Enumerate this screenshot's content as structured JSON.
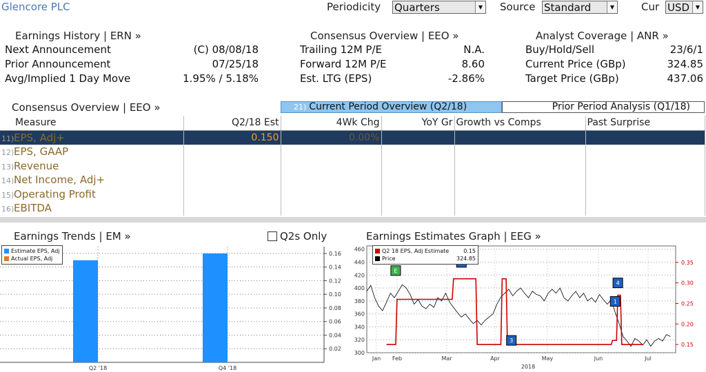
{
  "company": "Glencore PLC",
  "controls": {
    "periodicity_label": "Periodicity",
    "periodicity_value": "Quarters",
    "source_label": "Source",
    "source_value": "Standard",
    "cur_label": "Cur",
    "cur_value": "USD"
  },
  "earnings_history": {
    "title": "Earnings History | ERN »",
    "rows": [
      {
        "label": "Next Announcement",
        "value": "(C) 08/08/18"
      },
      {
        "label": "Prior Announcement",
        "value": "07/25/18"
      },
      {
        "label": "Avg/Implied 1 Day Move",
        "value": "1.95% / 5.18%"
      }
    ]
  },
  "consensus_overview": {
    "title": "Consensus Overview | EEO »",
    "rows": [
      {
        "label": "Trailing 12M P/E",
        "value": "N.A."
      },
      {
        "label": "Forward 12M P/E",
        "value": "8.60"
      },
      {
        "label": "Est. LTG (EPS)",
        "value": "-2.86%"
      }
    ]
  },
  "analyst_coverage": {
    "title": "Analyst Coverage | ANR »",
    "rows": [
      {
        "label": "Buy/Hold/Sell",
        "value": "23/6/1"
      },
      {
        "label": "Current Price (GBp)",
        "value": "324.85"
      },
      {
        "label": "Target Price (GBp)",
        "value": "437.06"
      }
    ]
  },
  "table_section": {
    "title": "Consensus Overview | EEO »",
    "tab_active_num": "21)",
    "tab_active": "Current Period Overview (Q2/18)",
    "tab_inactive": "Prior Period Analysis (Q1/18)",
    "headers": [
      "Measure",
      "Q2/18 Est",
      "4Wk Chg",
      "YoY Gr",
      "Growth vs Comps",
      "Past Surprise"
    ],
    "rows": [
      {
        "num": "11)",
        "measure": "EPS, Adj+",
        "est": "0.150",
        "chg": "0.00%"
      },
      {
        "num": "12)",
        "measure": "EPS, GAAP",
        "est": "",
        "chg": ""
      },
      {
        "num": "13)",
        "measure": "Revenue",
        "est": "",
        "chg": ""
      },
      {
        "num": "14)",
        "measure": "Net Income, Adj+",
        "est": "",
        "chg": ""
      },
      {
        "num": "15)",
        "measure": "Operating Profit",
        "est": "",
        "chg": ""
      },
      {
        "num": "16)",
        "measure": "EBITDA",
        "est": "",
        "chg": ""
      }
    ]
  },
  "earnings_trends": {
    "title": "Earnings Trends | EM »",
    "checkbox_label": "Q2s Only",
    "legend": [
      "Estimate EPS, Adj",
      "Actual EPS, Adj"
    ]
  },
  "estimates_graph": {
    "title": "Earnings Estimates Graph | EEG »",
    "legend": [
      {
        "label": "Q2 18 EPS, Adj Estimate",
        "value": "0.15"
      },
      {
        "label": "Price",
        "value": "324.85"
      }
    ],
    "year_label": "2018",
    "markers": [
      "E",
      "2",
      "3",
      "1",
      "4"
    ]
  },
  "colors": {
    "accent_blue": "#1e90ff",
    "tab_active": "#8ec6f0",
    "selected_row": "#1e3a5f",
    "estimate_red": "#cc0000",
    "price_black": "#000000"
  },
  "chart_data": [
    {
      "type": "bar",
      "title": "Earnings Trends",
      "categories": [
        "Q2 '18",
        "Q4 '18"
      ],
      "series": [
        {
          "name": "Estimate EPS, Adj",
          "values": [
            0.15,
            0.16
          ]
        },
        {
          "name": "Actual EPS, Adj",
          "values": [
            null,
            null
          ]
        }
      ],
      "yticks": [
        "0.02",
        "0.04",
        "0.06",
        "0.08",
        "0.10",
        "0.12",
        "0.14",
        "0.16"
      ],
      "ylim": [
        0,
        0.17
      ],
      "legend_position": "top-left",
      "grid": true
    },
    {
      "type": "line",
      "title": "Earnings Estimates Graph",
      "x_ticks": [
        "Jan",
        "Feb",
        "Mar",
        "Apr",
        "May",
        "Jun",
        "Jul"
      ],
      "x_label": "2018",
      "y_left": {
        "ticks": [
          "300",
          "320",
          "340",
          "360",
          "380",
          "400",
          "420",
          "440",
          "460"
        ],
        "ylim": [
          300,
          465
        ]
      },
      "y_right": {
        "ticks": [
          "0.15",
          "0.20",
          "0.25",
          "0.30",
          "0.35"
        ],
        "ylim": [
          0.13,
          0.39
        ]
      },
      "series": [
        {
          "name": "Price",
          "axis": "left",
          "points": [
            [
              0,
              395
            ],
            [
              3,
              404
            ],
            [
              6,
              385
            ],
            [
              9,
              372
            ],
            [
              12,
              365
            ],
            [
              15,
              378
            ],
            [
              18,
              392
            ],
            [
              21,
              385
            ],
            [
              24,
              395
            ],
            [
              27,
              405
            ],
            [
              30,
              400
            ],
            [
              33,
              390
            ],
            [
              36,
              375
            ],
            [
              39,
              382
            ],
            [
              42,
              372
            ],
            [
              45,
              368
            ],
            [
              48,
              375
            ],
            [
              51,
              370
            ],
            [
              54,
              385
            ],
            [
              57,
              380
            ],
            [
              60,
              392
            ],
            [
              63,
              378
            ],
            [
              66,
              370
            ],
            [
              69,
              362
            ],
            [
              72,
              355
            ],
            [
              75,
              360
            ],
            [
              78,
              352
            ],
            [
              81,
              345
            ],
            [
              84,
              350
            ],
            [
              87,
              343
            ],
            [
              90,
              350
            ],
            [
              93,
              355
            ],
            [
              96,
              360
            ],
            [
              99,
              375
            ],
            [
              102,
              386
            ],
            [
              105,
              392
            ],
            [
              108,
              398
            ],
            [
              111,
              388
            ],
            [
              114,
              395
            ],
            [
              117,
              400
            ],
            [
              120,
              392
            ],
            [
              123,
              385
            ],
            [
              126,
              395
            ],
            [
              129,
              390
            ],
            [
              132,
              388
            ],
            [
              135,
              380
            ],
            [
              138,
              392
            ],
            [
              141,
              398
            ],
            [
              144,
              392
            ],
            [
              147,
              400
            ],
            [
              150,
              385
            ],
            [
              153,
              380
            ],
            [
              156,
              388
            ],
            [
              159,
              395
            ],
            [
              162,
              385
            ],
            [
              165,
              392
            ],
            [
              168,
              380
            ],
            [
              171,
              385
            ],
            [
              174,
              378
            ],
            [
              177,
              390
            ],
            [
              180,
              382
            ],
            [
              183,
              375
            ],
            [
              186,
              382
            ],
            [
              189,
              362
            ],
            [
              192,
              345
            ],
            [
              195,
              325
            ],
            [
              198,
              318
            ],
            [
              201,
              310
            ],
            [
              204,
              322
            ],
            [
              207,
              318
            ],
            [
              210,
              312
            ],
            [
              213,
              320
            ],
            [
              216,
              310
            ],
            [
              219,
              318
            ],
            [
              222,
              322
            ],
            [
              225,
              318
            ],
            [
              228,
              328
            ],
            [
              231,
              325
            ]
          ]
        },
        {
          "name": "Q2 18 EPS, Adj Estimate",
          "axis": "right",
          "points": [
            [
              15,
              0.15
            ],
            [
              22,
              0.15
            ],
            [
              23,
              0.26
            ],
            [
              65,
              0.26
            ],
            [
              66,
              0.31
            ],
            [
              83,
              0.31
            ],
            [
              84,
              0.15
            ],
            [
              102,
              0.15
            ],
            [
              103,
              0.31
            ],
            [
              106,
              0.31
            ],
            [
              107,
              0.15
            ],
            [
              186,
              0.15
            ],
            [
              187,
              0.16
            ],
            [
              190,
              0.16
            ],
            [
              191,
              0.27
            ],
            [
              193,
              0.27
            ],
            [
              194,
              0.15
            ],
            [
              210,
              0.15
            ]
          ]
        }
      ],
      "grid": true
    }
  ]
}
